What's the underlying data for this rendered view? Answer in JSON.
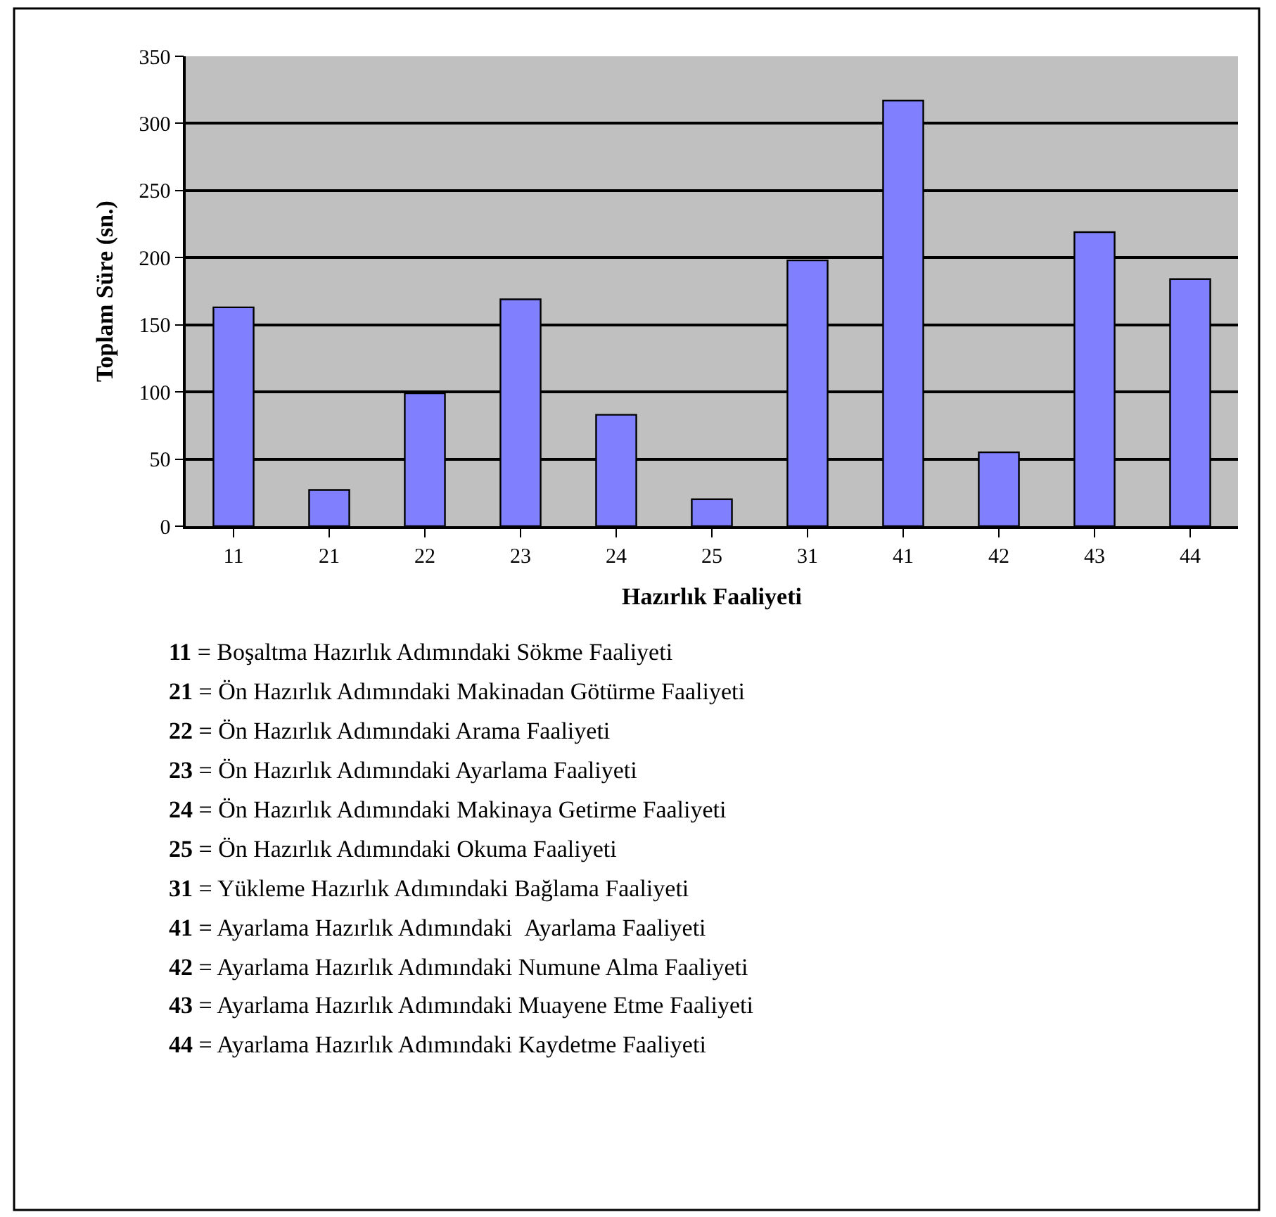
{
  "chart_data": {
    "type": "bar",
    "xlabel": "Hazırlık Faaliyeti",
    "ylabel": "Toplam Süre (sn.)",
    "categories": [
      "11",
      "21",
      "22",
      "23",
      "24",
      "25",
      "31",
      "41",
      "42",
      "43",
      "44"
    ],
    "values": [
      163,
      27,
      99,
      169,
      83,
      20,
      198,
      317,
      55,
      219,
      184
    ],
    "color": "#8080ff",
    "ylim": [
      0,
      350
    ],
    "yticks": [
      0,
      50,
      100,
      150,
      200,
      250,
      300,
      350
    ],
    "grid": "y",
    "annotations": [
      "11 = Boşaltma Hazırlık Adımındaki Sökme Faaliyeti",
      "21 = Ön Hazırlık Adımındaki Makinadan Götürme Faaliyeti",
      "22 = Ön Hazırlık Adımındaki Arama Faaliyeti",
      "23 = Ön Hazırlık Adımındaki Ayarlama Faaliyeti",
      "24 = Ön Hazırlık Adımındaki Makinaya Getirme Faaliyeti",
      "25 = Ön Hazırlık Adımındaki Okuma Faaliyeti",
      "31 = Yükleme Hazırlık Adımındaki Bağlama Faaliyeti",
      "41 = Ayarlama Hazırlık Adımındaki  Ayarlama Faaliyeti",
      "42 = Ayarlama Hazırlık Adımındaki Numune Alma Faaliyeti",
      "43 = Ayarlama Hazırlık Adımındaki Muayene Etme Faaliyeti",
      "44 = Ayarlama Hazırlık Adımındaki Kaydetme Faaliyeti"
    ]
  }
}
